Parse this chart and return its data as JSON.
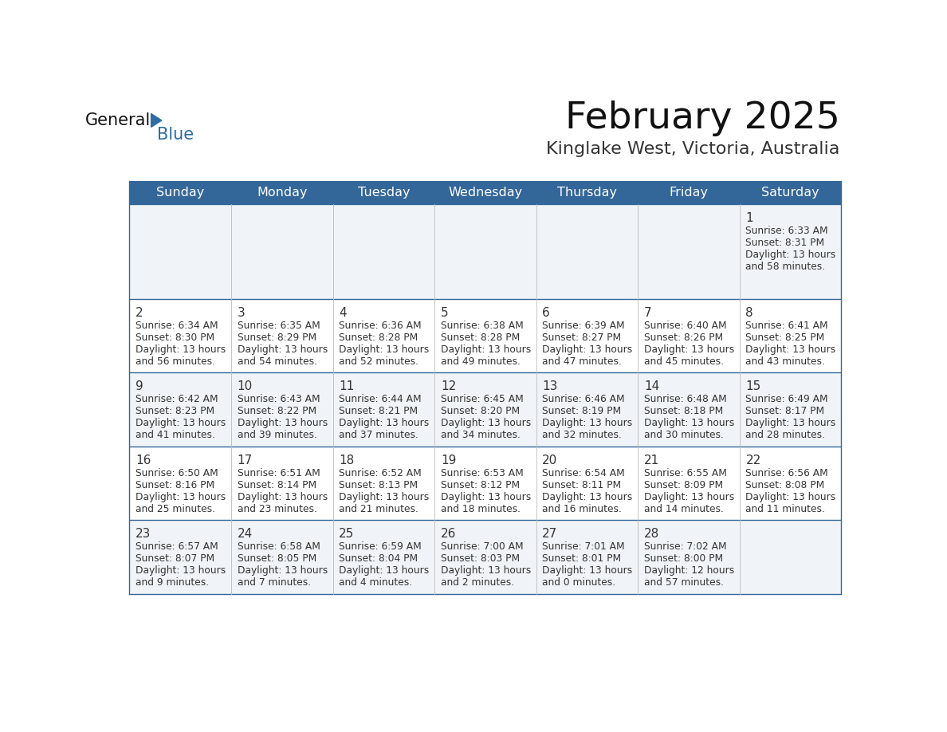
{
  "title": "February 2025",
  "subtitle": "Kinglake West, Victoria, Australia",
  "header_bg": "#336699",
  "header_text_color": "#FFFFFF",
  "cell_bg_odd": "#F0F4F8",
  "cell_bg_even": "#FFFFFF",
  "day_number_color": "#333333",
  "cell_text_color": "#333333",
  "border_color": "#336699",
  "days_of_week": [
    "Sunday",
    "Monday",
    "Tuesday",
    "Wednesday",
    "Thursday",
    "Friday",
    "Saturday"
  ],
  "logo_color": "#2E6DA4",
  "calendar_data": [
    [
      null,
      null,
      null,
      null,
      null,
      null,
      {
        "day": "1",
        "sunrise": "6:33 AM",
        "sunset": "8:31 PM",
        "dl1": "Daylight: 13 hours",
        "dl2": "and 58 minutes."
      }
    ],
    [
      {
        "day": "2",
        "sunrise": "6:34 AM",
        "sunset": "8:30 PM",
        "dl1": "Daylight: 13 hours",
        "dl2": "and 56 minutes."
      },
      {
        "day": "3",
        "sunrise": "6:35 AM",
        "sunset": "8:29 PM",
        "dl1": "Daylight: 13 hours",
        "dl2": "and 54 minutes."
      },
      {
        "day": "4",
        "sunrise": "6:36 AM",
        "sunset": "8:28 PM",
        "dl1": "Daylight: 13 hours",
        "dl2": "and 52 minutes."
      },
      {
        "day": "5",
        "sunrise": "6:38 AM",
        "sunset": "8:28 PM",
        "dl1": "Daylight: 13 hours",
        "dl2": "and 49 minutes."
      },
      {
        "day": "6",
        "sunrise": "6:39 AM",
        "sunset": "8:27 PM",
        "dl1": "Daylight: 13 hours",
        "dl2": "and 47 minutes."
      },
      {
        "day": "7",
        "sunrise": "6:40 AM",
        "sunset": "8:26 PM",
        "dl1": "Daylight: 13 hours",
        "dl2": "and 45 minutes."
      },
      {
        "day": "8",
        "sunrise": "6:41 AM",
        "sunset": "8:25 PM",
        "dl1": "Daylight: 13 hours",
        "dl2": "and 43 minutes."
      }
    ],
    [
      {
        "day": "9",
        "sunrise": "6:42 AM",
        "sunset": "8:23 PM",
        "dl1": "Daylight: 13 hours",
        "dl2": "and 41 minutes."
      },
      {
        "day": "10",
        "sunrise": "6:43 AM",
        "sunset": "8:22 PM",
        "dl1": "Daylight: 13 hours",
        "dl2": "and 39 minutes."
      },
      {
        "day": "11",
        "sunrise": "6:44 AM",
        "sunset": "8:21 PM",
        "dl1": "Daylight: 13 hours",
        "dl2": "and 37 minutes."
      },
      {
        "day": "12",
        "sunrise": "6:45 AM",
        "sunset": "8:20 PM",
        "dl1": "Daylight: 13 hours",
        "dl2": "and 34 minutes."
      },
      {
        "day": "13",
        "sunrise": "6:46 AM",
        "sunset": "8:19 PM",
        "dl1": "Daylight: 13 hours",
        "dl2": "and 32 minutes."
      },
      {
        "day": "14",
        "sunrise": "6:48 AM",
        "sunset": "8:18 PM",
        "dl1": "Daylight: 13 hours",
        "dl2": "and 30 minutes."
      },
      {
        "day": "15",
        "sunrise": "6:49 AM",
        "sunset": "8:17 PM",
        "dl1": "Daylight: 13 hours",
        "dl2": "and 28 minutes."
      }
    ],
    [
      {
        "day": "16",
        "sunrise": "6:50 AM",
        "sunset": "8:16 PM",
        "dl1": "Daylight: 13 hours",
        "dl2": "and 25 minutes."
      },
      {
        "day": "17",
        "sunrise": "6:51 AM",
        "sunset": "8:14 PM",
        "dl1": "Daylight: 13 hours",
        "dl2": "and 23 minutes."
      },
      {
        "day": "18",
        "sunrise": "6:52 AM",
        "sunset": "8:13 PM",
        "dl1": "Daylight: 13 hours",
        "dl2": "and 21 minutes."
      },
      {
        "day": "19",
        "sunrise": "6:53 AM",
        "sunset": "8:12 PM",
        "dl1": "Daylight: 13 hours",
        "dl2": "and 18 minutes."
      },
      {
        "day": "20",
        "sunrise": "6:54 AM",
        "sunset": "8:11 PM",
        "dl1": "Daylight: 13 hours",
        "dl2": "and 16 minutes."
      },
      {
        "day": "21",
        "sunrise": "6:55 AM",
        "sunset": "8:09 PM",
        "dl1": "Daylight: 13 hours",
        "dl2": "and 14 minutes."
      },
      {
        "day": "22",
        "sunrise": "6:56 AM",
        "sunset": "8:08 PM",
        "dl1": "Daylight: 13 hours",
        "dl2": "and 11 minutes."
      }
    ],
    [
      {
        "day": "23",
        "sunrise": "6:57 AM",
        "sunset": "8:07 PM",
        "dl1": "Daylight: 13 hours",
        "dl2": "and 9 minutes."
      },
      {
        "day": "24",
        "sunrise": "6:58 AM",
        "sunset": "8:05 PM",
        "dl1": "Daylight: 13 hours",
        "dl2": "and 7 minutes."
      },
      {
        "day": "25",
        "sunrise": "6:59 AM",
        "sunset": "8:04 PM",
        "dl1": "Daylight: 13 hours",
        "dl2": "and 4 minutes."
      },
      {
        "day": "26",
        "sunrise": "7:00 AM",
        "sunset": "8:03 PM",
        "dl1": "Daylight: 13 hours",
        "dl2": "and 2 minutes."
      },
      {
        "day": "27",
        "sunrise": "7:01 AM",
        "sunset": "8:01 PM",
        "dl1": "Daylight: 13 hours",
        "dl2": "and 0 minutes."
      },
      {
        "day": "28",
        "sunrise": "7:02 AM",
        "sunset": "8:00 PM",
        "dl1": "Daylight: 12 hours",
        "dl2": "and 57 minutes."
      },
      null
    ]
  ]
}
